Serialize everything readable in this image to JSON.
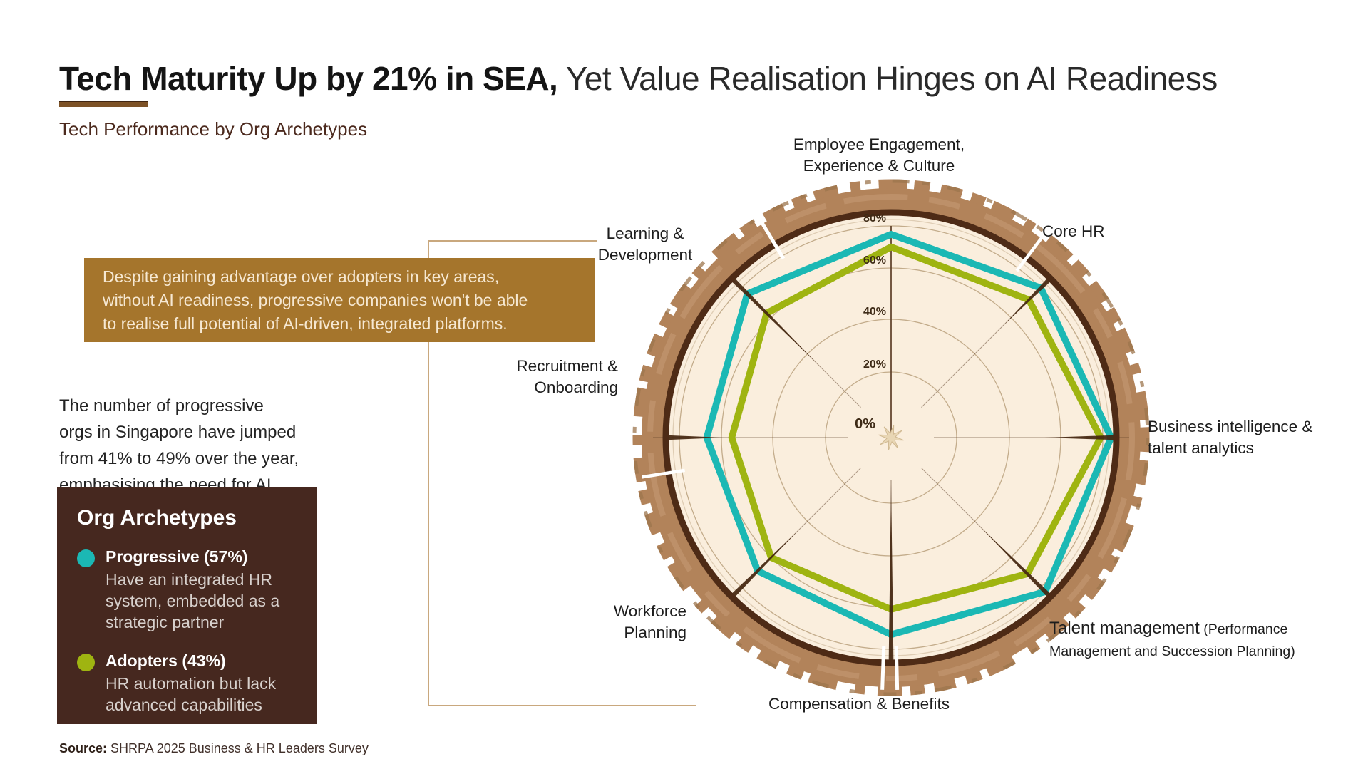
{
  "header": {
    "title_bold": "Tech Maturity Up by 21% in SEA,",
    "title_regular": " Yet Value Realisation Hinges on AI Readiness",
    "subtitle": "Tech Performance by Org Archetypes"
  },
  "callout": {
    "text": "Despite gaining advantage over adopters in key areas,\nwithout AI readiness, progressive companies won't be able\nto realise full potential of AI-driven, integrated platforms."
  },
  "insight": {
    "text": "The number of progressive\norgs in Singapore have jumped\nfrom 41% to 49% over the year,\nemphasising the need for AI"
  },
  "legend": {
    "title": "Org Archetypes",
    "items": [
      {
        "label": "Progressive (57%)",
        "description": "Have an integrated HR\nsystem, embedded as a\nstrategic partner",
        "color": "#1bb8b4"
      },
      {
        "label": "Adopters (43%)",
        "description": "HR automation but lack\nadvanced capabilities",
        "color": "#9fb411"
      }
    ]
  },
  "source": {
    "label": "Source:",
    "text": " SHRPA 2025 Business & HR Leaders Survey"
  },
  "chart_data": {
    "type": "radar",
    "title": "Tech Performance by Org Archetypes",
    "categories": [
      "Employee Engagement,\nExperience & Culture",
      "Core HR",
      "Business intelligence &\ntalent analytics",
      "Talent management (Performance Management and Succession Planning)",
      "Compensation & Benefits",
      "Workforce\nPlanning",
      "Recruitment &\nOnboarding",
      "Learning &\nDevelopment"
    ],
    "tm_label": {
      "main": "Talent management",
      "sub": " (Performance Management and Succession Planning)"
    },
    "series": [
      {
        "name": "Progressive",
        "color": "#1bb8b4",
        "values": [
          76,
          80,
          84,
          83,
          73,
          69,
          67,
          76
        ]
      },
      {
        "name": "Adopters",
        "color": "#9fb411",
        "values": [
          70,
          72,
          79,
          71,
          61,
          60,
          56,
          63
        ]
      }
    ],
    "ticks": [
      "0%",
      "20%",
      "40%",
      "60%",
      "80%"
    ],
    "scale_max": 100,
    "grid": "circular",
    "legend_position": "left",
    "style": {
      "bark": "#b2835a",
      "bark_dark_ring": "#4e2b16",
      "wood_face": "#faeedd",
      "ring_line": "#c3ac8b",
      "crack": "#44260f"
    }
  }
}
